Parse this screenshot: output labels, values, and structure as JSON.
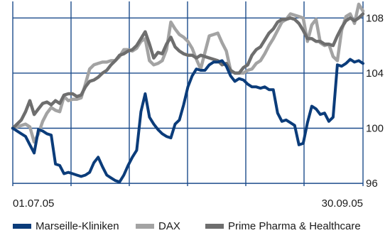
{
  "chart_data": {
    "type": "line",
    "title": "",
    "xlabel": "",
    "ylabel": "",
    "x_tick_labels": [
      "01.07.05",
      "30.09.05"
    ],
    "y_ticks": [
      96,
      100,
      104,
      108
    ],
    "y_tick_labels": [
      "96",
      "100",
      "104",
      "108"
    ],
    "ylim": [
      95.8,
      109.2
    ],
    "grid": true,
    "legend_position": "bottom",
    "series": [
      {
        "name": "Marseille-Kliniken",
        "color": "#0b3c7a",
        "values": [
          100,
          99.8,
          99.6,
          99.4,
          98.8,
          98.2,
          99.9,
          99.8,
          99.6,
          99.5,
          97.4,
          97.3,
          96.7,
          96.8,
          96.7,
          96.6,
          96.5,
          96.6,
          96.8,
          97.5,
          97.9,
          97.2,
          96.6,
          96.4,
          96.2,
          96.1,
          96.6,
          97.3,
          97.9,
          98.4,
          101.2,
          102.5,
          100.8,
          100.3,
          99.9,
          99.6,
          99.4,
          99.3,
          100.3,
          100.6,
          101.7,
          103.0,
          103.8,
          104.3,
          104.2,
          104.2,
          104.6,
          104.8,
          104.8,
          104.9,
          104.5,
          103.8,
          103.4,
          103.6,
          103.5,
          103.2,
          103.0,
          103.0,
          102.9,
          103.0,
          102.8,
          102.8,
          101.1,
          100.5,
          100.6,
          100.4,
          100.2,
          98.8,
          98.9,
          100.4,
          101.6,
          101.4,
          101.0,
          101.1,
          100.5,
          100.8,
          104.6,
          104.5,
          104.7,
          105.0,
          104.8,
          104.9,
          104.7
        ]
      },
      {
        "name": "DAX",
        "color": "#a3a3a3",
        "values": [
          100,
          100.1,
          100.2,
          100.3,
          100.1,
          99.0,
          99.6,
          100.5,
          101.1,
          101.5,
          101.3,
          101.2,
          102.3,
          102.0,
          102.1,
          102.1,
          102.2,
          103.2,
          104.3,
          104.6,
          104.7,
          104.8,
          104.8,
          104.9,
          104.9,
          105.2,
          105.7,
          105.7,
          105.6,
          105.8,
          106.3,
          106.5,
          104.9,
          104.6,
          104.7,
          104.9,
          105.7,
          107.7,
          107.2,
          106.8,
          106.6,
          106.3,
          105.8,
          105.0,
          104.3,
          105.5,
          106.7,
          106.8,
          106.9,
          106.2,
          105.6,
          104.2,
          104.0,
          104.0,
          104.0,
          104.2,
          104.3,
          104.7,
          104.9,
          105.4,
          106.0,
          106.5,
          107.1,
          107.7,
          107.9,
          108.3,
          108.2,
          108.1,
          108.0,
          106.3,
          107.5,
          107.9,
          106.2,
          106.0,
          106.1,
          105.2,
          104.9,
          107.1,
          108.1,
          108.3,
          107.6,
          109.0,
          108.5
        ]
      },
      {
        "name": "Prime Pharma & Healthcare",
        "color": "#6e6e6e",
        "values": [
          100,
          100.3,
          100.6,
          101.2,
          102.0,
          101.0,
          101.4,
          101.8,
          101.9,
          101.7,
          102.0,
          101.8,
          102.4,
          102.5,
          102.5,
          102.3,
          102.4,
          103.0,
          103.4,
          103.5,
          103.7,
          104.0,
          104.2,
          104.6,
          104.9,
          105.3,
          105.4,
          105.6,
          105.7,
          106.0,
          106.5,
          107.0,
          106.1,
          105.1,
          105.5,
          105.4,
          106.1,
          106.6,
          105.9,
          105.6,
          105.4,
          105.3,
          105.3,
          105.1,
          105.3,
          105.2,
          105.1,
          105.0,
          104.9,
          104.6,
          104.7,
          104.2,
          104.0,
          104.0,
          104.4,
          104.6,
          105.3,
          105.7,
          105.9,
          106.4,
          106.9,
          107.2,
          107.7,
          107.9,
          107.9,
          108.0,
          107.9,
          107.6,
          107.1,
          106.5,
          106.5,
          106.3,
          106.3,
          106.1,
          106.1,
          106.0,
          106.7,
          107.3,
          107.8,
          108.0,
          107.8,
          108.0,
          108.3
        ]
      }
    ]
  }
}
